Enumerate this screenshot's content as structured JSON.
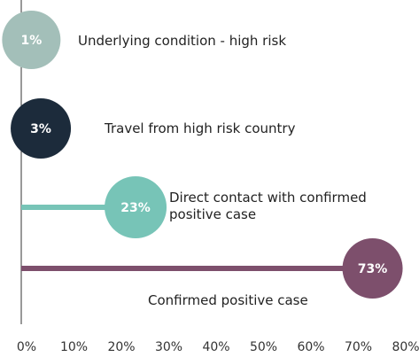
{
  "chart_data": {
    "type": "lollipop",
    "categories": [
      "Underlying condition - high risk",
      "Travel from high risk country",
      "Direct contact with confirmed positive case",
      "Confirmed positive case"
    ],
    "values": [
      1,
      3,
      23,
      73
    ],
    "value_labels": [
      "1%",
      "3%",
      "23%",
      "73%"
    ],
    "colors": [
      "#a3bfb9",
      "#1c2b3b",
      "#77c4b7",
      "#7d4f6c"
    ],
    "xlim": [
      0,
      80
    ],
    "xticks": [
      {
        "value": 0,
        "label": "0%"
      },
      {
        "value": 10,
        "label": "10%"
      },
      {
        "value": 20,
        "label": "20%"
      },
      {
        "value": 30,
        "label": "30%"
      },
      {
        "value": 40,
        "label": "40%"
      },
      {
        "value": 50,
        "label": "50%"
      },
      {
        "value": 60,
        "label": "60%"
      },
      {
        "value": 70,
        "label": "70%"
      },
      {
        "value": 80,
        "label": "80%"
      }
    ]
  }
}
